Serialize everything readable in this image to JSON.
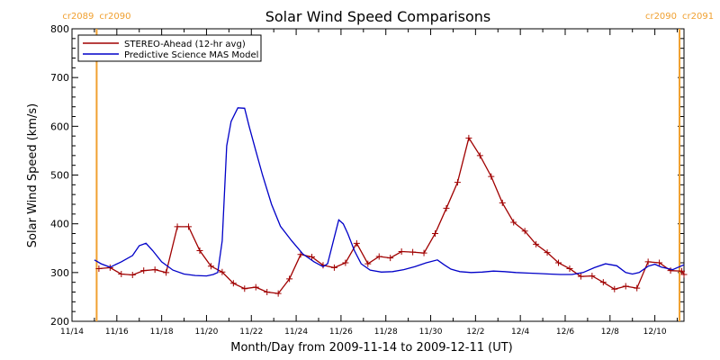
{
  "chart_data": {
    "type": "line",
    "title": "Solar Wind Speed Comparisons",
    "xlabel": "Month/Day from 2009-11-14 to 2009-12-11 (UT)",
    "ylabel": "Solar Wind Speed (km/s)",
    "ylim": [
      200,
      800
    ],
    "yticks": [
      200,
      300,
      400,
      500,
      600,
      700,
      800
    ],
    "xlim": [
      0,
      27.3
    ],
    "xticks": [
      {
        "x": 0,
        "label": "11/14"
      },
      {
        "x": 2,
        "label": "11/16"
      },
      {
        "x": 4,
        "label": "11/18"
      },
      {
        "x": 6,
        "label": "11/20"
      },
      {
        "x": 8,
        "label": "11/22"
      },
      {
        "x": 10,
        "label": "11/24"
      },
      {
        "x": 12,
        "label": "11/26"
      },
      {
        "x": 14,
        "label": "11/28"
      },
      {
        "x": 16,
        "label": "11/30"
      },
      {
        "x": 18,
        "label": "12/2"
      },
      {
        "x": 20,
        "label": "12/4"
      },
      {
        "x": 22,
        "label": "12/6"
      },
      {
        "x": 24,
        "label": "12/8"
      },
      {
        "x": 26,
        "label": "12/10"
      }
    ],
    "grid": false,
    "legend": "top-left",
    "carrington_markers": [
      {
        "x": 1.1,
        "left_label": "cr2089",
        "right_label": "cr2090",
        "side": "left"
      },
      {
        "x": 27.1,
        "left_label": "cr2090",
        "right_label": "cr2091",
        "side": "right"
      }
    ],
    "marker_color": "#f0a030",
    "series": [
      {
        "name": "STEREO-Ahead (12-hr avg)",
        "color": "#a00000",
        "marker": "plus",
        "x": [
          1.2,
          1.7,
          2.2,
          2.7,
          3.2,
          3.7,
          4.2,
          4.7,
          5.2,
          5.7,
          6.2,
          6.7,
          7.2,
          7.7,
          8.2,
          8.7,
          9.2,
          9.7,
          10.2,
          10.7,
          11.2,
          11.7,
          12.2,
          12.7,
          13.2,
          13.7,
          14.2,
          14.7,
          15.2,
          15.7,
          16.2,
          16.7,
          17.2,
          17.7,
          18.2,
          18.7,
          19.2,
          19.7,
          20.2,
          20.7,
          21.2,
          21.7,
          22.2,
          22.7,
          23.2,
          23.7,
          24.2,
          24.7,
          25.2,
          25.7,
          26.2,
          26.7,
          27.2,
          27.3
        ],
        "y": [
          308,
          310,
          297,
          295,
          304,
          306,
          300,
          394,
          394,
          345,
          313,
          301,
          278,
          267,
          270,
          260,
          257,
          287,
          337,
          332,
          315,
          310,
          320,
          360,
          318,
          333,
          330,
          343,
          342,
          340,
          380,
          432,
          485,
          576,
          540,
          497,
          443,
          403,
          385,
          358,
          341,
          320,
          308,
          292,
          293,
          280,
          266,
          272,
          268,
          322,
          320,
          304,
          303,
          296
        ]
      },
      {
        "name": "Predictive Science MAS Model",
        "color": "#0000c8",
        "marker": "none",
        "x": [
          1.0,
          1.3,
          1.7,
          2.2,
          2.7,
          3.0,
          3.3,
          3.6,
          4.0,
          4.5,
          5.0,
          5.5,
          6.0,
          6.3,
          6.5,
          6.7,
          6.9,
          7.1,
          7.4,
          7.7,
          7.9,
          8.2,
          8.5,
          8.9,
          9.3,
          9.8,
          10.3,
          10.8,
          11.2,
          11.4,
          11.7,
          11.9,
          12.1,
          12.3,
          12.6,
          12.9,
          13.3,
          13.8,
          14.3,
          14.8,
          15.3,
          15.8,
          16.3,
          16.6,
          16.9,
          17.3,
          17.8,
          18.3,
          18.8,
          19.3,
          19.8,
          20.3,
          20.8,
          21.3,
          21.8,
          22.3,
          22.8,
          23.3,
          23.8,
          24.3,
          24.7,
          25.0,
          25.3,
          25.7,
          26.0,
          26.3,
          26.8,
          27.3
        ],
        "y": [
          326,
          318,
          311,
          322,
          335,
          355,
          360,
          345,
          322,
          305,
          297,
          294,
          293,
          296,
          300,
          365,
          560,
          610,
          638,
          637,
          600,
          550,
          500,
          440,
          395,
          365,
          338,
          322,
          312,
          318,
          372,
          408,
          400,
          380,
          345,
          318,
          305,
          301,
          302,
          306,
          312,
          320,
          326,
          316,
          307,
          302,
          300,
          301,
          303,
          302,
          300,
          299,
          298,
          297,
          296,
          296,
          300,
          310,
          318,
          314,
          300,
          297,
          300,
          313,
          317,
          311,
          306,
          316
        ]
      }
    ]
  }
}
